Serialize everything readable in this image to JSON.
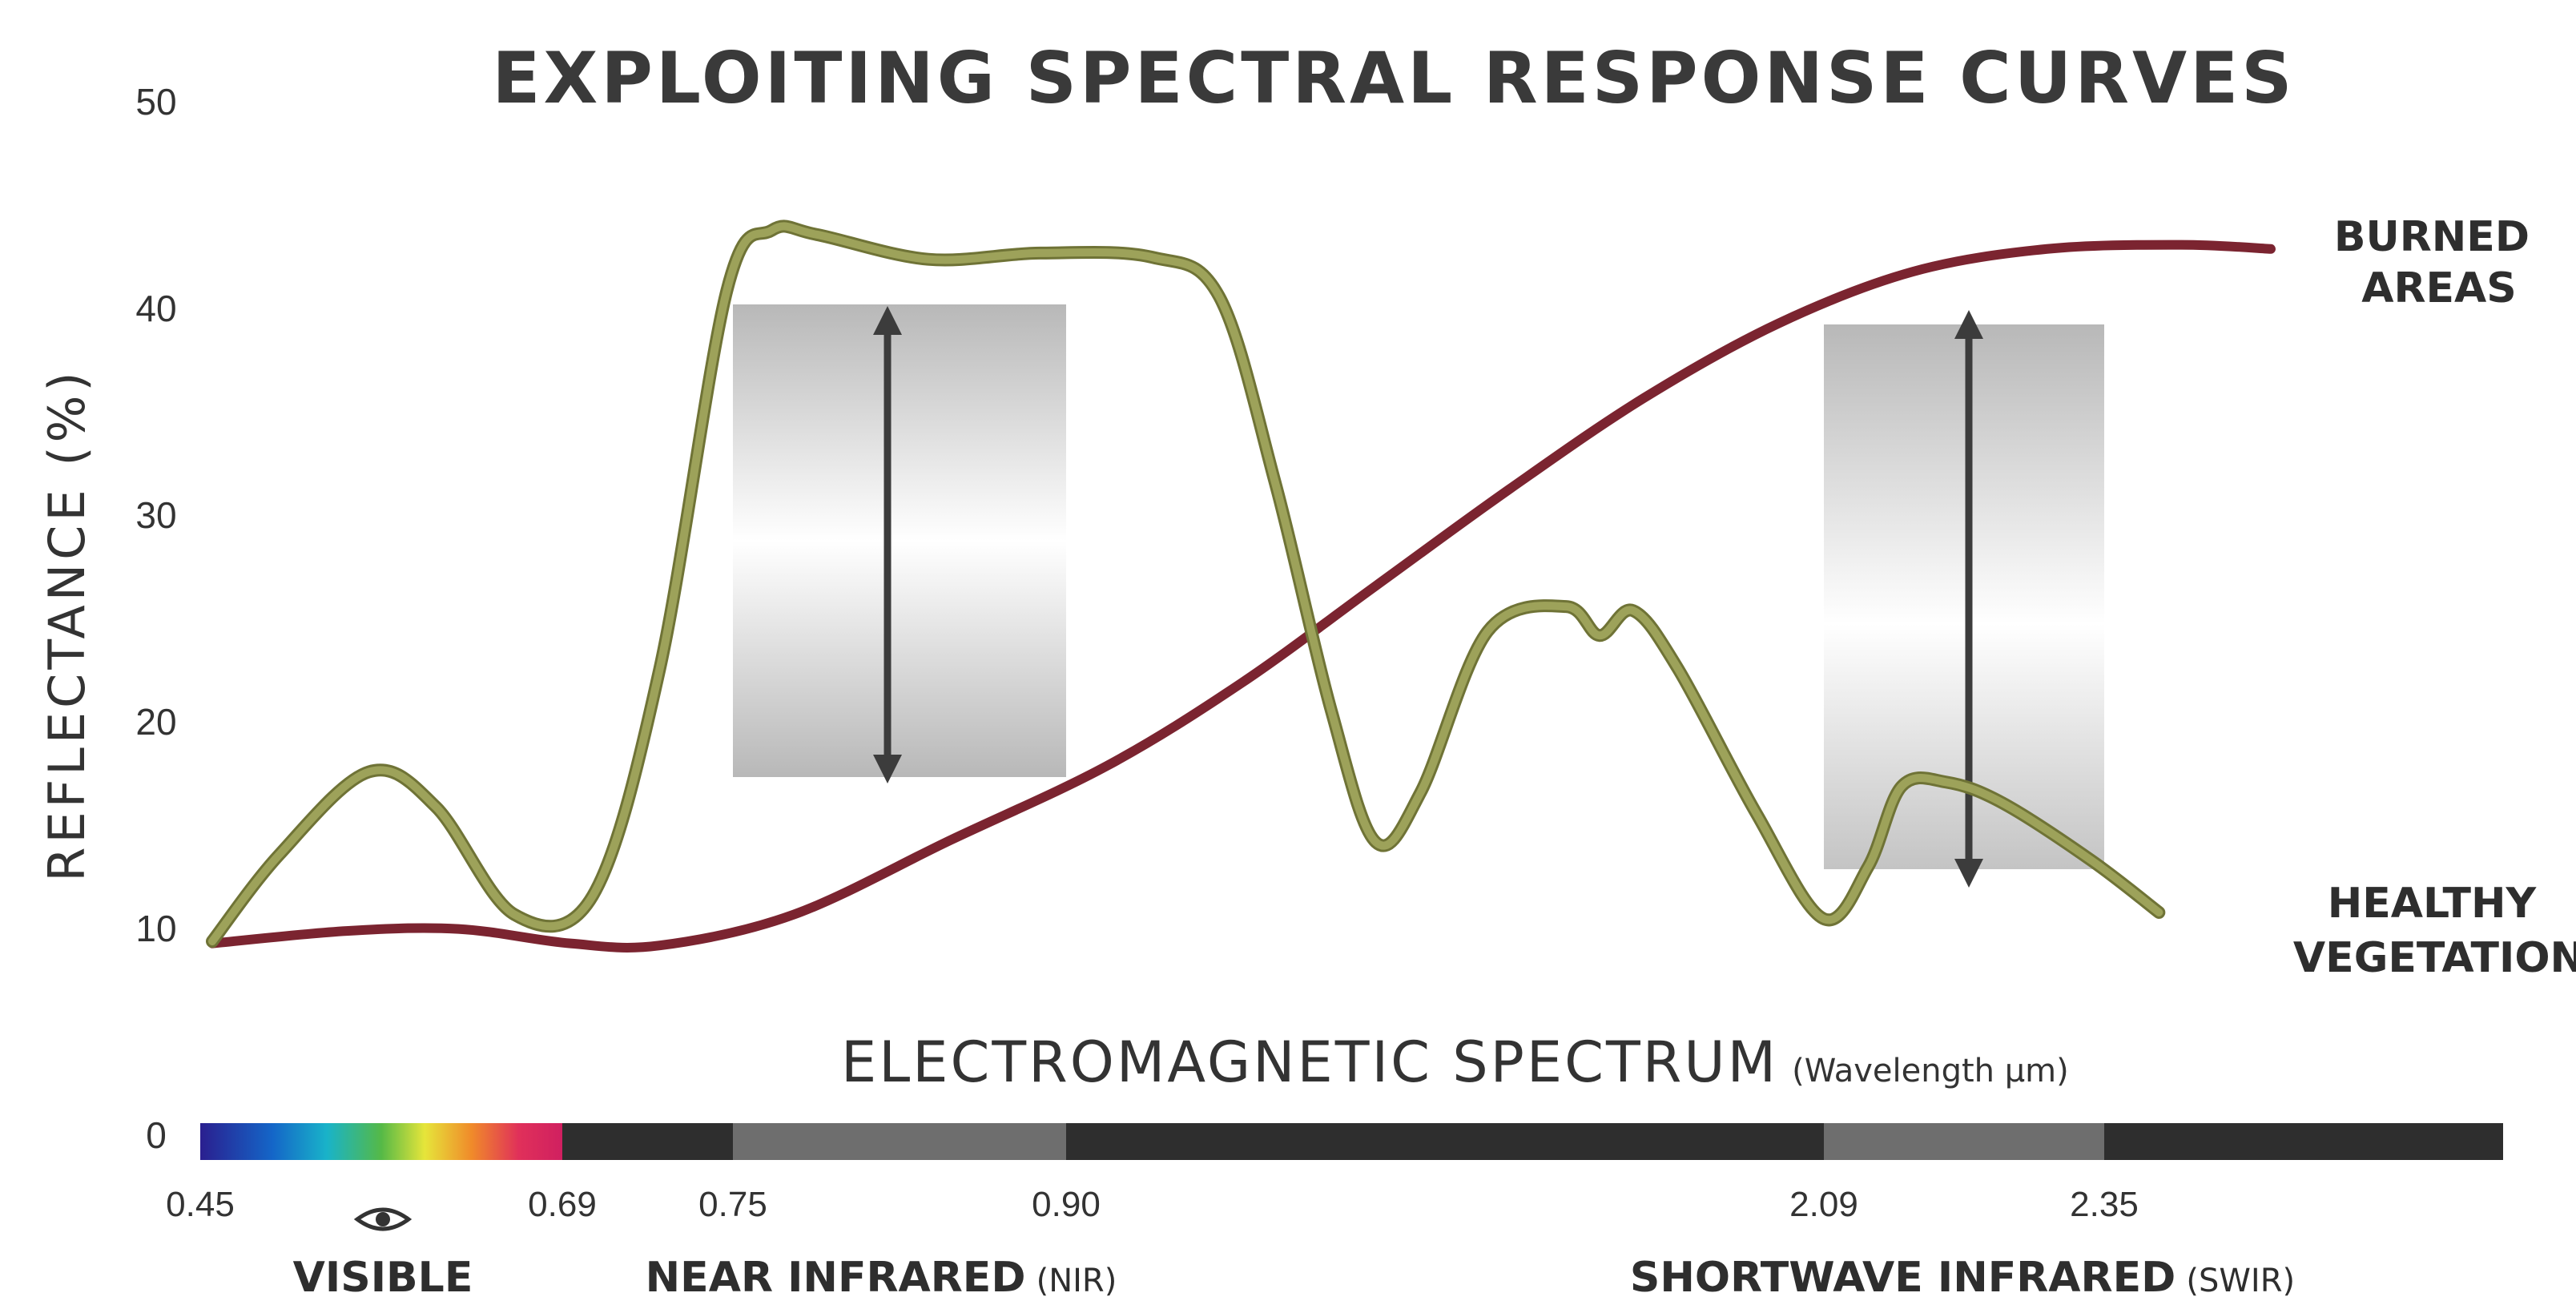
{
  "chart_data": {
    "type": "line",
    "title": "EXPLOITING SPECTRAL RESPONSE CURVES",
    "ylabel": "REFLECTANCE (%)",
    "xlabel": "ELECTROMAGNETIC SPECTRUM",
    "xlabel_unit": "(Wavelength μm)",
    "ylim": [
      0,
      50
    ],
    "y_ticks": [
      "0",
      "10",
      "20",
      "30",
      "40",
      "50"
    ],
    "x_ticks": [
      "0.45",
      "0.69",
      "0.75",
      "0.90",
      "2.09",
      "2.35"
    ],
    "grid": false,
    "legend": "series labels at right end of curves",
    "series": [
      {
        "name": "BURNED AREAS",
        "name_lines": [
          "BURNED",
          "AREAS"
        ],
        "color": "#7b2430",
        "points": [
          [
            0,
            9.2
          ],
          [
            6,
            9.8
          ],
          [
            11,
            9.9
          ],
          [
            16,
            9.2
          ],
          [
            20,
            9.1
          ],
          [
            26,
            10.6
          ],
          [
            33,
            14.2
          ],
          [
            40,
            17.8
          ],
          [
            46,
            21.8
          ],
          [
            52,
            26.5
          ],
          [
            58,
            31.2
          ],
          [
            64,
            35.6
          ],
          [
            70,
            39.2
          ],
          [
            76,
            41.7
          ],
          [
            82,
            42.8
          ],
          [
            88,
            43.0
          ],
          [
            92,
            42.8
          ]
        ]
      },
      {
        "name": "HEALTHY VEGETATION",
        "name_lines": [
          "HEALTHY",
          "VEGETATION"
        ],
        "color": "#9da25a",
        "points": [
          [
            0,
            9.3
          ],
          [
            3,
            13.5
          ],
          [
            7,
            17.5
          ],
          [
            10,
            15.8
          ],
          [
            13.5,
            10.6
          ],
          [
            17,
            11.5
          ],
          [
            20,
            22.5
          ],
          [
            23,
            40.8
          ],
          [
            25,
            43.7
          ],
          [
            27,
            43.5
          ],
          [
            32,
            42.3
          ],
          [
            37,
            42.6
          ],
          [
            42,
            42.4
          ],
          [
            45,
            40.5
          ],
          [
            47.5,
            31.5
          ],
          [
            50,
            20.5
          ],
          [
            52,
            14.1
          ],
          [
            54,
            16.5
          ],
          [
            57,
            24.3
          ],
          [
            60.5,
            25.5
          ],
          [
            62,
            24.1
          ],
          [
            63.5,
            25.3
          ],
          [
            65.5,
            22.5
          ],
          [
            69,
            15.5
          ],
          [
            72,
            10.4
          ],
          [
            74,
            12.9
          ],
          [
            75.5,
            16.8
          ],
          [
            77.5,
            17.0
          ],
          [
            80,
            16.0
          ],
          [
            84,
            13.2
          ],
          [
            87,
            10.7
          ]
        ]
      }
    ],
    "highlight_bands": [
      {
        "from_tick": "0.75",
        "to_tick": "0.90",
        "label": "NEAR INFRARED",
        "abbr": "(NIR)"
      },
      {
        "from_tick": "2.09",
        "to_tick": "2.35",
        "label": "SHORTWAVE INFRARED",
        "abbr": "(SWIR)"
      }
    ],
    "visible_band": {
      "from_tick": "0.45",
      "to_tick": "0.69",
      "label": "VISIBLE",
      "icon": "eye-icon"
    }
  },
  "colors": {
    "spectrum_bar": "#2e2e2e",
    "band_highlight": "#6e6e6e",
    "arrow": "#3c3c3c"
  }
}
